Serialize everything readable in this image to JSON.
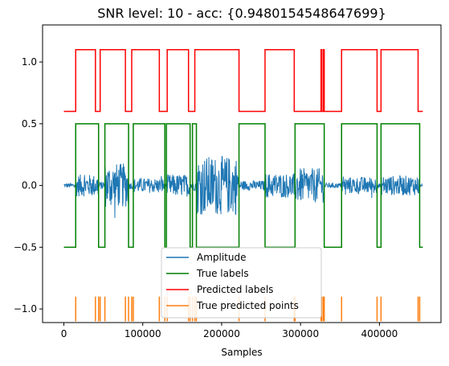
{
  "chart_data": {
    "type": "line",
    "title": "SNR level: 10 - acc: {0.9480154548647699}",
    "xlabel": "Samples",
    "ylabel": "",
    "xlim": [
      -27000,
      478000
    ],
    "ylim": [
      -1.11,
      1.3
    ],
    "x_ticks": [
      0,
      100000,
      200000,
      300000,
      400000
    ],
    "x_tick_labels": [
      "0",
      "100000",
      "200000",
      "300000",
      "400000"
    ],
    "y_ticks": [
      -1.0,
      -0.5,
      0.0,
      0.5,
      1.0
    ],
    "y_tick_labels": [
      "−1.0",
      "−0.5",
      "0.0",
      "0.5",
      "1.0"
    ],
    "grid": false,
    "legend_position": "lower center",
    "series": [
      {
        "name": "Amplitude",
        "color": "#1f77b4",
        "kind": "waveform",
        "baseline": 0.0,
        "segments": [
          {
            "x": [
              0,
              15000
            ],
            "envelope": 0.02
          },
          {
            "x": [
              15000,
              44000
            ],
            "envelope": 0.09
          },
          {
            "x": [
              44000,
              52000
            ],
            "envelope": 0.03
          },
          {
            "x": [
              52000,
              82000
            ],
            "envelope": 0.18
          },
          {
            "x": [
              82000,
              88000
            ],
            "envelope": 0.03
          },
          {
            "x": [
              88000,
              128000
            ],
            "envelope": 0.06
          },
          {
            "x": [
              128000,
              130000
            ],
            "envelope": 0.02
          },
          {
            "x": [
              130000,
              160000
            ],
            "envelope": 0.09
          },
          {
            "x": [
              160000,
              168000
            ],
            "envelope": 0.04
          },
          {
            "x": [
              168000,
              222000
            ],
            "envelope": 0.24
          },
          {
            "x": [
              222000,
              255000
            ],
            "envelope": 0.04
          },
          {
            "x": [
              255000,
              293000
            ],
            "envelope": 0.1
          },
          {
            "x": [
              293000,
              330000
            ],
            "envelope": 0.14
          },
          {
            "x": [
              330000,
              352000
            ],
            "envelope": 0.02
          },
          {
            "x": [
              352000,
              397000
            ],
            "envelope": 0.07
          },
          {
            "x": [
              397000,
              402000
            ],
            "envelope": 0.02
          },
          {
            "x": [
              402000,
              451000
            ],
            "envelope": 0.08
          },
          {
            "x": [
              451000,
              455000
            ],
            "envelope": 0.01
          }
        ]
      },
      {
        "name": "True labels",
        "color": "#008000",
        "kind": "step",
        "x": [
          0,
          15000,
          15000,
          44000,
          44000,
          52000,
          52000,
          82000,
          82000,
          88000,
          88000,
          128000,
          128000,
          130000,
          130000,
          160000,
          160000,
          163000,
          163000,
          168000,
          168000,
          222000,
          222000,
          255000,
          255000,
          293000,
          293000,
          330000,
          330000,
          352000,
          352000,
          397000,
          397000,
          402000,
          402000,
          451000,
          451000,
          455000
        ],
        "values": [
          -0.5,
          -0.5,
          0.5,
          0.5,
          -0.5,
          -0.5,
          0.5,
          0.5,
          -0.5,
          -0.5,
          0.5,
          0.5,
          -0.5,
          -0.5,
          0.5,
          0.5,
          -0.5,
          -0.5,
          0.5,
          0.5,
          -0.5,
          -0.5,
          0.5,
          0.5,
          -0.5,
          -0.5,
          0.5,
          0.5,
          -0.5,
          -0.5,
          0.5,
          0.5,
          -0.5,
          -0.5,
          0.5,
          0.5,
          -0.5,
          -0.5
        ]
      },
      {
        "name": "Predicted labels",
        "color": "#ff0000",
        "kind": "step",
        "x": [
          0,
          15000,
          15000,
          40000,
          40000,
          46000,
          46000,
          78000,
          78000,
          86000,
          86000,
          121000,
          121000,
          131000,
          131000,
          158000,
          158000,
          166000,
          166000,
          222000,
          222000,
          255000,
          255000,
          292000,
          292000,
          326000,
          326000,
          327000,
          327000,
          329000,
          329000,
          330000,
          330000,
          352000,
          352000,
          397000,
          397000,
          402000,
          402000,
          449000,
          449000,
          455000
        ],
        "values": [
          0.6,
          0.6,
          1.1,
          1.1,
          0.6,
          0.6,
          1.1,
          1.1,
          0.6,
          0.6,
          1.1,
          1.1,
          0.6,
          0.6,
          1.1,
          1.1,
          0.6,
          0.6,
          1.1,
          1.1,
          0.6,
          0.6,
          1.1,
          1.1,
          0.6,
          0.6,
          1.1,
          1.1,
          0.6,
          0.6,
          1.1,
          1.1,
          0.6,
          0.6,
          1.1,
          1.1,
          0.6,
          0.6,
          1.1,
          1.1,
          0.6,
          0.6
        ]
      },
      {
        "name": "True predicted points",
        "color": "#ff7f0e",
        "kind": "impulse",
        "baseline": -1.1,
        "top": -0.9,
        "x": [
          15000,
          40000,
          44000,
          46000,
          52000,
          78000,
          82000,
          86000,
          88000,
          121000,
          128000,
          131000,
          158000,
          160000,
          163000,
          166000,
          168000,
          222000,
          255000,
          292000,
          293000,
          326000,
          327000,
          329000,
          330000,
          352000,
          397000,
          402000,
          449000,
          451000
        ]
      }
    ]
  }
}
